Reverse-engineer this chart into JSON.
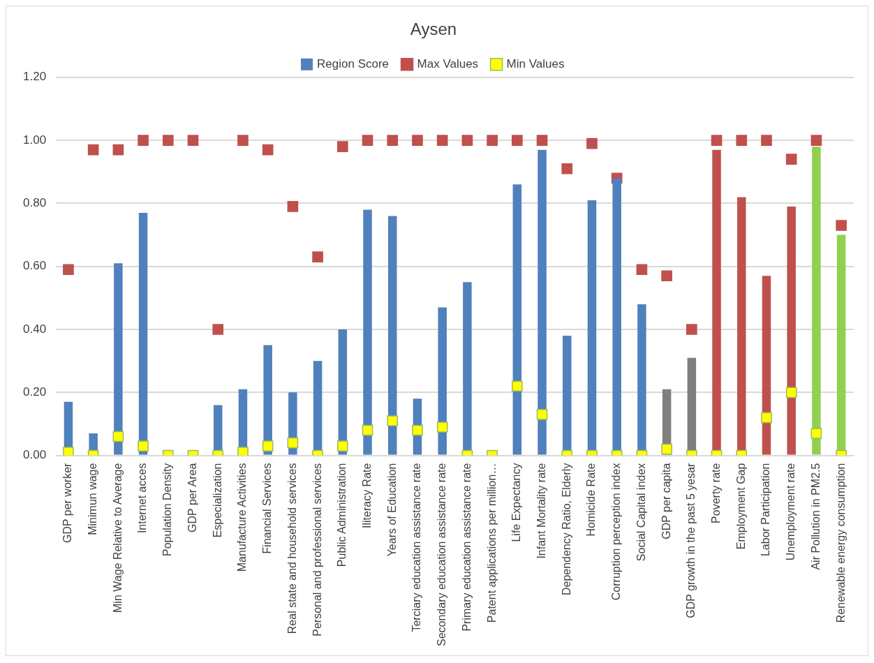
{
  "chart_data": {
    "type": "bar",
    "title": "Aysen",
    "categories": [
      "GDP per worker",
      "Minimun wage",
      "Min Wage Relative to Average",
      "Internet acces",
      "Population Density",
      "GDP per Area",
      "Especialization",
      "Manufacture Activities",
      "Financial Services",
      "Real state and household services",
      "Personal and professional services",
      "Public Administration",
      "Iliteracy Rate",
      "Years of Education",
      "Terciary education assistance rate",
      "Secondary education assistance rate",
      "Primary education assistance rate",
      "Patent applications per million…",
      "Life Expectancy",
      "Infant Mortality rate",
      "Dependency Ratio, Elderly",
      "Homicide Rate",
      "Corruption perception index",
      "Social Capital index",
      "GDP per capita",
      "GDP growth in the past 5 yesar",
      "Poverty rate",
      "Employment Gap",
      "Labor Participation",
      "Unemployment rate",
      "Air Pollution in PM2.5",
      "Renewable energy consumption"
    ],
    "series": [
      {
        "name": "Region Score",
        "color": "#4f81bd",
        "colors": [
          "#4f81bd",
          "#4f81bd",
          "#4f81bd",
          "#4f81bd",
          "#4f81bd",
          "#4f81bd",
          "#4f81bd",
          "#4f81bd",
          "#4f81bd",
          "#4f81bd",
          "#4f81bd",
          "#4f81bd",
          "#4f81bd",
          "#4f81bd",
          "#4f81bd",
          "#4f81bd",
          "#4f81bd",
          "#4f81bd",
          "#4f81bd",
          "#4f81bd",
          "#4f81bd",
          "#4f81bd",
          "#4f81bd",
          "#4f81bd",
          "#7f7f7f",
          "#7f7f7f",
          "#c0504d",
          "#c0504d",
          "#c0504d",
          "#c0504d",
          "#92d050",
          "#92d050"
        ],
        "values": [
          0.17,
          0.07,
          0.61,
          0.77,
          0,
          0,
          0.16,
          0.21,
          0.35,
          0.2,
          0.3,
          0.4,
          0.78,
          0.76,
          0.18,
          0.47,
          0.55,
          0,
          0.86,
          0.97,
          0.38,
          0.81,
          0.88,
          0.48,
          0.21,
          0.31,
          0.97,
          0.82,
          0.57,
          0.79,
          0.98,
          0.7
        ]
      },
      {
        "name": "Max Values",
        "type": "scatter",
        "color": "#c0504d",
        "values": [
          0.59,
          0.97,
          0.97,
          1.0,
          1.0,
          1.0,
          0.4,
          1.0,
          0.97,
          0.79,
          0.63,
          0.98,
          1.0,
          1.0,
          1.0,
          1.0,
          1.0,
          1.0,
          1.0,
          1.0,
          0.91,
          0.99,
          0.88,
          0.59,
          0.57,
          0.4,
          1.0,
          1.0,
          1.0,
          0.94,
          1.0,
          0.73
        ]
      },
      {
        "name": "Min Values",
        "type": "scatter",
        "color": "#ffff00",
        "values": [
          0.01,
          0,
          0.06,
          0.03,
          0,
          0,
          0,
          0.01,
          0.03,
          0.04,
          0,
          0.03,
          0.08,
          0.11,
          0.08,
          0.09,
          0,
          0,
          0.22,
          0.13,
          0,
          0,
          0,
          0,
          0.02,
          0,
          0,
          0,
          0.12,
          0.2,
          0.07,
          0
        ]
      }
    ],
    "ylim": [
      0,
      1.2
    ],
    "yticks": [
      {
        "value": 0,
        "label": "0.00"
      },
      {
        "value": 0.2,
        "label": "0.20"
      },
      {
        "value": 0.4,
        "label": "0.40"
      },
      {
        "value": 0.6,
        "label": "0.60"
      },
      {
        "value": 0.8,
        "label": "0.80"
      },
      {
        "value": 1.0,
        "label": "1.00"
      },
      {
        "value": 1.2,
        "label": "1.20"
      }
    ],
    "grid": "y",
    "legend": "top",
    "marker": "square"
  }
}
